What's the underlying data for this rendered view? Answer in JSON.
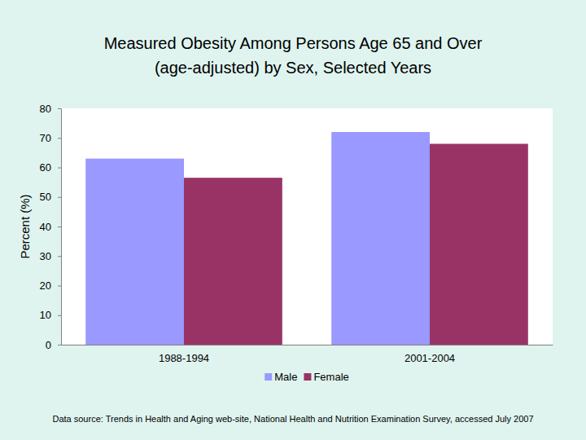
{
  "chart_data": {
    "type": "bar",
    "title": "Measured Obesity Among Persons Age 65 and Over\n(age-adjusted) by Sex, Selected Years",
    "y_label": "Percent (%)",
    "categories": [
      "1988-1994",
      "2001-2004"
    ],
    "series": [
      {
        "name": "Male",
        "color": "#9999ff",
        "values": [
          63,
          72
        ]
      },
      {
        "name": "Female",
        "color": "#993366",
        "values": [
          56.5,
          68
        ]
      }
    ],
    "ylim": [
      0,
      80
    ],
    "yticks": [
      0,
      10,
      20,
      30,
      40,
      50,
      60,
      70,
      80
    ],
    "grid": false,
    "legend": "bottom",
    "source": "Data source: Trends in Health and Aging web-site, National Health and Nutrition Examination Survey, accessed July 2007"
  }
}
